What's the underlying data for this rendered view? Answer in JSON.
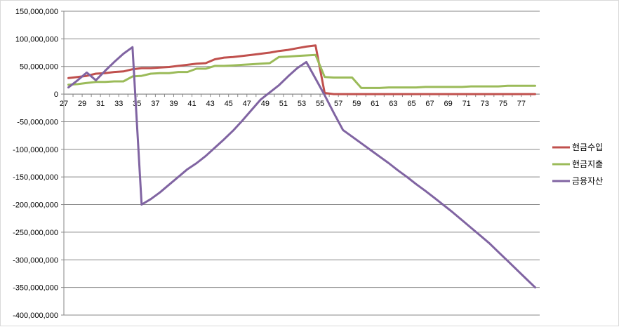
{
  "chart_data": {
    "type": "line",
    "title": "",
    "xlabel": "",
    "ylabel": "",
    "x": [
      27,
      28,
      29,
      30,
      31,
      32,
      33,
      34,
      35,
      36,
      37,
      38,
      39,
      40,
      41,
      42,
      43,
      44,
      45,
      46,
      47,
      48,
      49,
      50,
      51,
      52,
      53,
      54,
      55,
      56,
      57,
      58,
      59,
      60,
      61,
      62,
      63,
      64,
      65,
      66,
      67,
      68,
      69,
      70,
      71,
      72,
      73,
      74,
      75,
      76,
      77,
      78
    ],
    "x_tick_labels": [
      "27",
      "29",
      "31",
      "33",
      "35",
      "37",
      "39",
      "41",
      "43",
      "45",
      "47",
      "49",
      "51",
      "53",
      "55",
      "57",
      "59",
      "61",
      "63",
      "65",
      "67",
      "69",
      "71",
      "73",
      "75",
      "77"
    ],
    "ylim": [
      -400000000,
      150000000
    ],
    "y_tick_labels": [
      "150,000,000",
      "100,000,000",
      "50,000,000",
      "0",
      "-50,000,000",
      "-100,000,000",
      "-150,000,000",
      "-200,000,000",
      "-250,000,000",
      "-300,000,000",
      "-350,000,000",
      "-400,000,000"
    ],
    "grid": "horizontal",
    "legend_position": "right",
    "series": [
      {
        "name": "현금수입",
        "color": "#c0504d",
        "values": [
          29000000,
          31000000,
          33000000,
          37000000,
          38000000,
          40000000,
          41000000,
          45000000,
          47000000,
          47000000,
          48000000,
          49000000,
          51000000,
          53000000,
          55000000,
          56000000,
          63000000,
          66000000,
          67000000,
          69000000,
          71000000,
          73000000,
          75000000,
          78000000,
          80000000,
          83000000,
          86000000,
          88000000,
          2000000,
          0,
          0,
          0,
          0,
          0,
          0,
          0,
          0,
          0,
          0,
          0,
          0,
          0,
          0,
          0,
          0,
          0,
          0,
          0,
          0,
          0,
          0,
          0
        ]
      },
      {
        "name": "현금지출",
        "color": "#9bbb59",
        "values": [
          17000000,
          18000000,
          20000000,
          22000000,
          22000000,
          23000000,
          23000000,
          32000000,
          33000000,
          37000000,
          38000000,
          38000000,
          40000000,
          40000000,
          46000000,
          46000000,
          51000000,
          51000000,
          52000000,
          53000000,
          54000000,
          55000000,
          56000000,
          67000000,
          68000000,
          69000000,
          70000000,
          71000000,
          31000000,
          30000000,
          30000000,
          30000000,
          11000000,
          11000000,
          11000000,
          12000000,
          12000000,
          12000000,
          12000000,
          13000000,
          13000000,
          13000000,
          13000000,
          13000000,
          14000000,
          14000000,
          14000000,
          14000000,
          15000000,
          15000000,
          15000000,
          15000000
        ]
      },
      {
        "name": "금융자산",
        "color": "#8064a2",
        "values": [
          12000000,
          25000000,
          39000000,
          25000000,
          42000000,
          58000000,
          73000000,
          85000000,
          -200000000,
          -190000000,
          -178000000,
          -164000000,
          -150000000,
          -136000000,
          -125000000,
          -112000000,
          -97000000,
          -82000000,
          -66000000,
          -48000000,
          -29000000,
          -10000000,
          3000000,
          16000000,
          32000000,
          47000000,
          58000000,
          28000000,
          -2000000,
          -34000000,
          -65000000,
          -77000000,
          -89000000,
          -101000000,
          -113000000,
          -125000000,
          -138000000,
          -150000000,
          -163000000,
          -175000000,
          -188000000,
          -201000000,
          -214000000,
          -228000000,
          -242000000,
          -256000000,
          -270000000,
          -286000000,
          -302000000,
          -318000000,
          -334000000,
          -350000000
        ]
      }
    ]
  }
}
